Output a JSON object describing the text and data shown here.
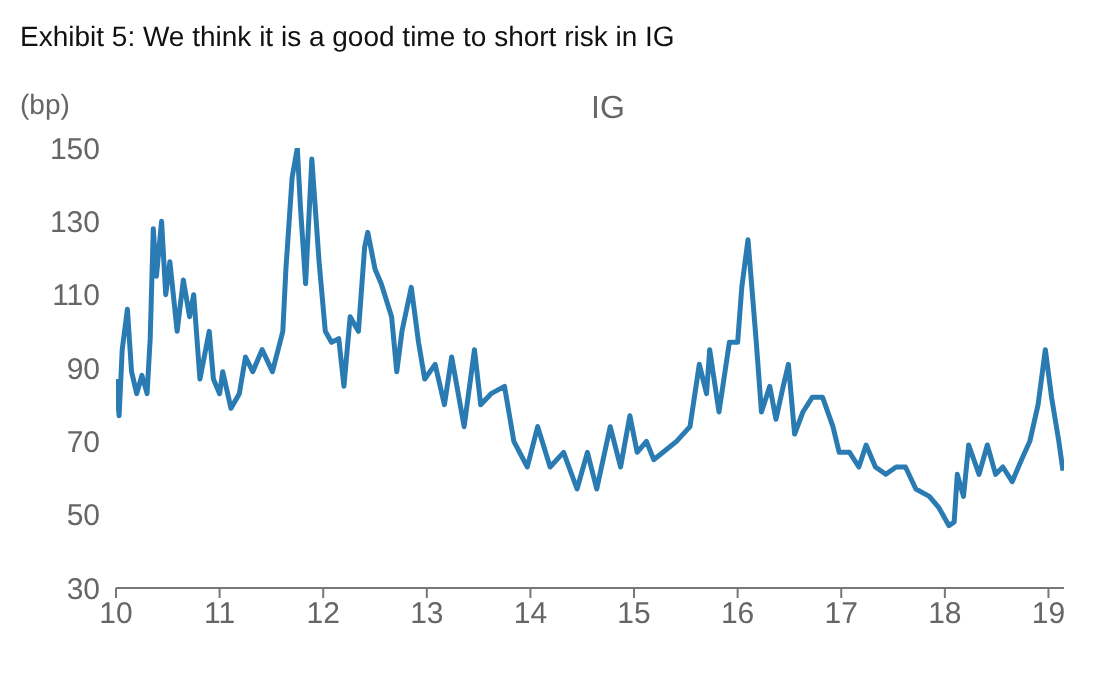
{
  "chart_data": {
    "type": "line",
    "title": "Exhibit 5:  We think it is a good time to short risk in IG",
    "subtitle": "IG",
    "ylabel": "(bp)",
    "x": [
      10.0,
      10.03,
      10.06,
      10.11,
      10.15,
      10.2,
      10.25,
      10.3,
      10.33,
      10.36,
      10.39,
      10.44,
      10.48,
      10.52,
      10.59,
      10.65,
      10.71,
      10.75,
      10.81,
      10.9,
      10.94,
      11.0,
      11.03,
      11.11,
      11.19,
      11.25,
      11.32,
      11.41,
      11.51,
      11.61,
      11.64,
      11.7,
      11.75,
      11.78,
      11.83,
      11.89,
      11.96,
      12.02,
      12.08,
      12.15,
      12.2,
      12.26,
      12.34,
      12.4,
      12.43,
      12.5,
      12.56,
      12.66,
      12.71,
      12.76,
      12.85,
      12.92,
      12.98,
      13.08,
      13.17,
      13.24,
      13.36,
      13.46,
      13.52,
      13.62,
      13.75,
      13.84,
      13.97,
      14.07,
      14.19,
      14.32,
      14.45,
      14.55,
      14.64,
      14.77,
      14.87,
      14.96,
      15.03,
      15.12,
      15.19,
      15.28,
      15.41,
      15.54,
      15.63,
      15.7,
      15.73,
      15.82,
      15.92,
      16.0,
      16.04,
      16.1,
      16.18,
      16.23,
      16.31,
      16.37,
      16.44,
      16.49,
      16.55,
      16.63,
      16.72,
      16.82,
      16.92,
      16.98,
      17.08,
      17.17,
      17.24,
      17.33,
      17.43,
      17.53,
      17.62,
      17.72,
      17.85,
      17.94,
      18.04,
      18.09,
      18.12,
      18.18,
      18.23,
      18.33,
      18.41,
      18.49,
      18.56,
      18.65,
      18.74,
      18.82,
      18.9,
      18.97,
      19.03,
      19.1,
      19.14
    ],
    "series": [
      {
        "color": "#2b7bb3",
        "values": [
          87,
          77,
          95,
          106,
          89,
          83,
          88,
          83,
          98,
          128,
          115,
          130,
          110,
          119,
          100,
          114,
          104,
          110,
          87,
          100,
          87,
          83,
          89,
          79,
          83,
          93,
          89,
          95,
          89,
          100,
          117,
          142,
          150,
          134,
          113,
          147,
          119,
          100,
          97,
          98,
          85,
          104,
          100,
          123,
          127,
          117,
          113,
          104,
          89,
          100,
          112,
          97,
          87,
          91,
          80,
          93,
          74,
          95,
          80,
          83,
          85,
          70,
          63,
          74,
          63,
          67,
          57,
          67,
          57,
          74,
          63,
          77,
          67,
          70,
          65,
          67,
          70,
          74,
          91,
          83,
          95,
          78,
          97,
          97,
          112,
          125,
          97,
          78,
          85,
          76,
          85,
          91,
          72,
          78,
          82,
          82,
          74,
          67,
          67,
          63,
          69,
          63,
          61,
          63,
          63,
          57,
          55,
          52,
          47,
          48,
          61,
          55,
          69,
          61,
          69,
          61,
          63,
          59,
          65,
          70,
          80,
          95,
          82,
          70,
          62
        ]
      }
    ],
    "xlim": [
      10,
      19.15
    ],
    "xticks": [
      {
        "value": 10,
        "label": "10"
      },
      {
        "value": 11,
        "label": "11"
      },
      {
        "value": 12,
        "label": "12"
      },
      {
        "value": 13,
        "label": "13"
      },
      {
        "value": 14,
        "label": "14"
      },
      {
        "value": 15,
        "label": "15"
      },
      {
        "value": 16,
        "label": "16"
      },
      {
        "value": 17,
        "label": "17"
      },
      {
        "value": 18,
        "label": "18"
      },
      {
        "value": 19,
        "label": "19"
      }
    ],
    "ylim": [
      30,
      150
    ],
    "yticks": [
      30,
      50,
      70,
      90,
      110,
      130,
      150
    ],
    "grid": false,
    "marker": "none",
    "line_style": "solid"
  }
}
